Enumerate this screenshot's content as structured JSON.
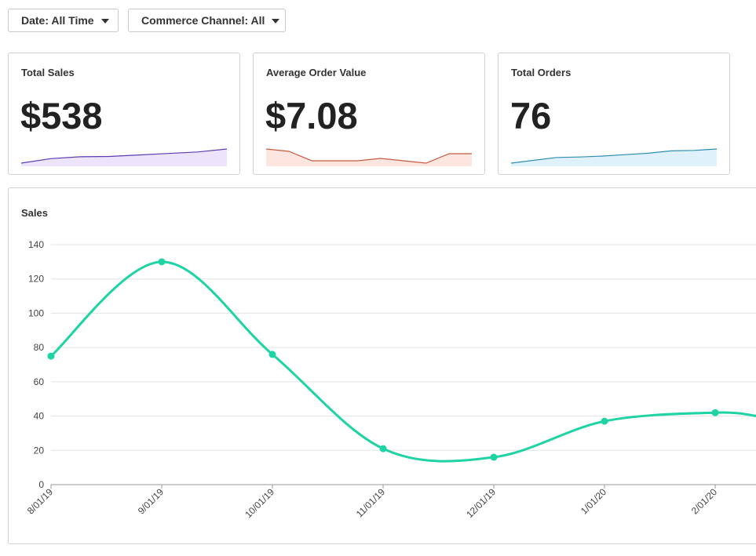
{
  "filters": {
    "date_label": "Date: All Time",
    "channel_label": "Commerce Channel: All"
  },
  "kpis": [
    {
      "title": "Total Sales",
      "value": "$538",
      "line_color": "#5b3cb0",
      "fill_color": "#ece4fb",
      "trend": [
        0,
        24,
        34,
        36,
        44,
        52,
        60,
        76
      ]
    },
    {
      "title": "Average Order Value",
      "value": "$7.08",
      "line_color": "#c85a40",
      "fill_color": "#fde6df",
      "trend": [
        7.4,
        7.3,
        6.9,
        6.9,
        6.9,
        7.0,
        6.9,
        6.8,
        7.2,
        7.2
      ]
    },
    {
      "title": "Total Orders",
      "value": "76",
      "line_color": "#2f8eb5",
      "fill_color": "#dff1fb",
      "trend": [
        0,
        6,
        12,
        13,
        15,
        18,
        21,
        26,
        27,
        30
      ]
    }
  ],
  "chart_data": {
    "type": "line",
    "title": "Sales",
    "categories": [
      "8/01/19",
      "9/01/19",
      "10/01/19",
      "11/01/19",
      "12/01/19",
      "1/01/20",
      "2/01/20"
    ],
    "values": [
      75,
      130,
      76,
      21,
      16,
      37,
      42
    ],
    "trailing_value": 40,
    "ylim": [
      0,
      140
    ],
    "yticks": [
      0,
      20,
      40,
      60,
      80,
      100,
      120,
      140
    ],
    "grid": true,
    "color": "#1ed3a4",
    "xlabel": "",
    "ylabel": ""
  }
}
